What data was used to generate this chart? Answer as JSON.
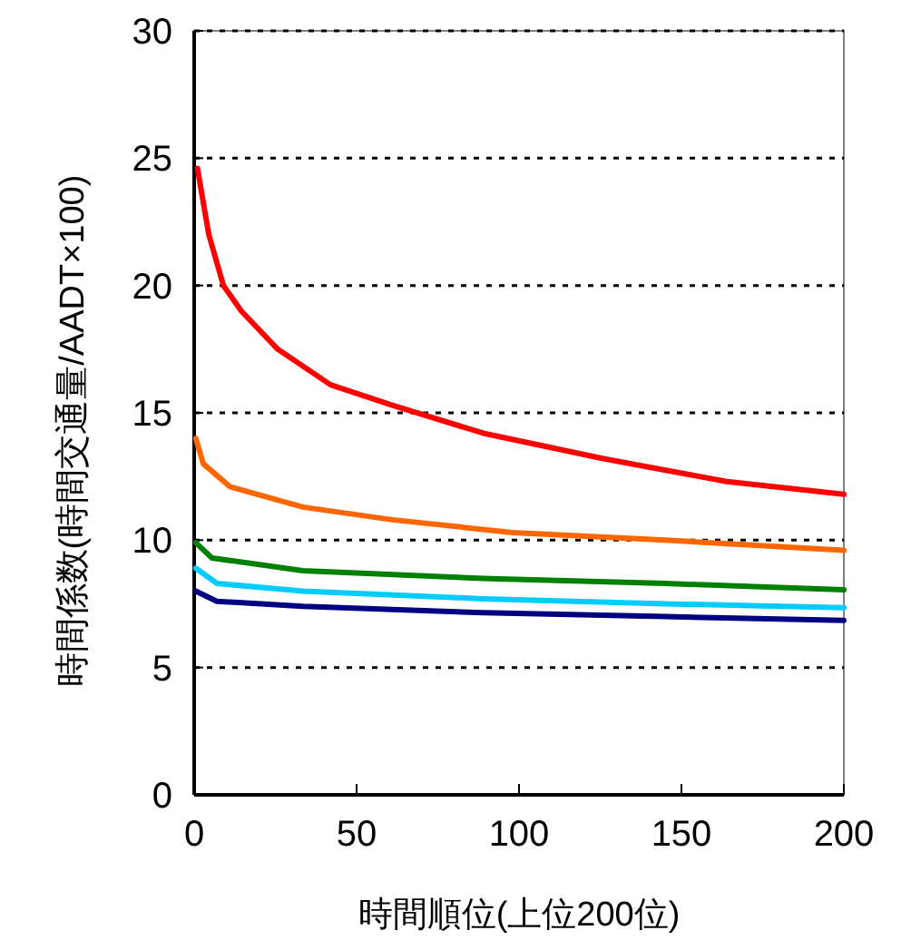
{
  "chart_data": {
    "type": "line",
    "xlabel": "時間順位(上位200位)",
    "ylabel": "時間係数(時間交通量/AADT×100)",
    "xlim": [
      0,
      200
    ],
    "xticks": [
      0,
      50,
      100,
      150,
      200
    ],
    "ylim": [
      0,
      30
    ],
    "yticks": [
      0,
      5,
      10,
      15,
      20,
      25,
      30
    ],
    "grid": "y",
    "line_style": "solid",
    "marker": "none",
    "series": [
      {
        "color": "#ff0000",
        "x": [
          1,
          4.5,
          9,
          14.5,
          25.7,
          42,
          61,
          89,
          126,
          164,
          200
        ],
        "values": [
          24.6,
          22.0,
          20.0,
          19.0,
          17.5,
          16.1,
          15.3,
          14.2,
          13.2,
          12.3,
          11.8
        ]
      },
      {
        "color": "#ff6600",
        "x": [
          0.5,
          2.8,
          11,
          33.5,
          61,
          98,
          145,
          200
        ],
        "values": [
          14.0,
          13.0,
          12.1,
          11.3,
          10.8,
          10.3,
          10.0,
          9.6
        ]
      },
      {
        "color": "#008000",
        "x": [
          0.5,
          5.5,
          33.5,
          89,
          145,
          200
        ],
        "values": [
          9.9,
          9.3,
          8.8,
          8.5,
          8.3,
          8.05
        ]
      },
      {
        "color": "#00ccff",
        "x": [
          0.5,
          7,
          33.5,
          89,
          145,
          200
        ],
        "values": [
          8.9,
          8.3,
          8.0,
          7.7,
          7.5,
          7.35
        ]
      },
      {
        "color": "#000080",
        "x": [
          0.5,
          7,
          33.5,
          89,
          145,
          200
        ],
        "values": [
          8.0,
          7.6,
          7.4,
          7.15,
          7.0,
          6.85
        ]
      }
    ]
  }
}
